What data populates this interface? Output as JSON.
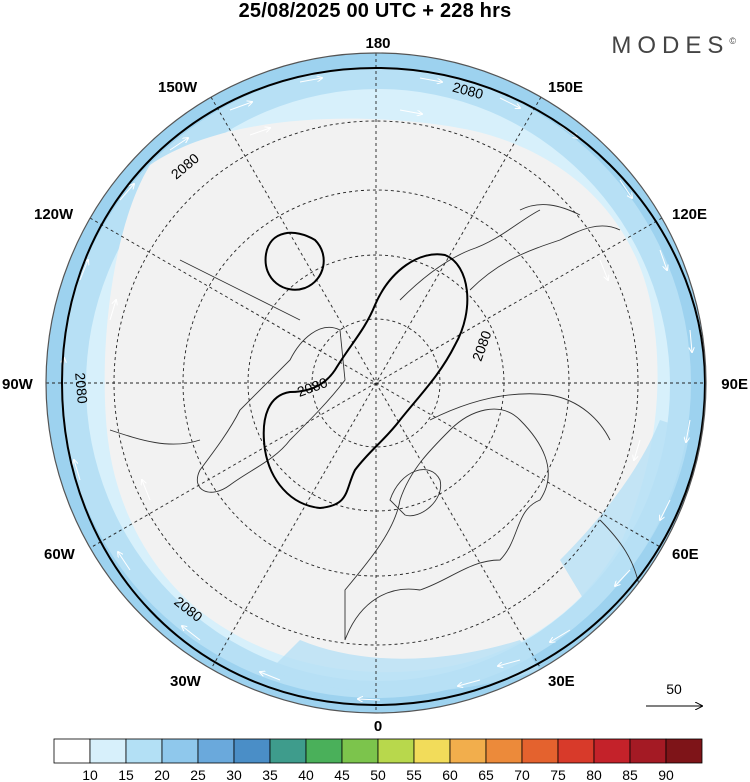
{
  "title": "25/08/2025  00 UTC  + 228 hrs",
  "logo": {
    "text": "MODES",
    "mark": "©"
  },
  "map": {
    "longitude_labels": {
      "top": "180",
      "bottom": "0",
      "left": "90W",
      "right": "90E",
      "top_left": "150W",
      "top_right": "150E",
      "upper_left": "120W",
      "upper_right": "120E",
      "lower_left": "60W",
      "lower_right": "60E",
      "bottom_left": "30W",
      "bottom_right": "30E"
    },
    "contour_labels": [
      "2080",
      "2080",
      "2080",
      "2080",
      "2080",
      "2080"
    ]
  },
  "reference_vector": {
    "value": "50"
  },
  "colorbar": {
    "ticks": [
      "10",
      "15",
      "20",
      "25",
      "30",
      "35",
      "40",
      "45",
      "50",
      "55",
      "60",
      "65",
      "70",
      "75",
      "80",
      "85",
      "90"
    ],
    "colors": [
      "#ffffff",
      "#d7f0fb",
      "#b3e0f5",
      "#8fc8ec",
      "#6aa9dc",
      "#4a8ec7",
      "#3e9c8c",
      "#4ab05a",
      "#7cc44c",
      "#b8d84c",
      "#f2dc5a",
      "#f2ae4c",
      "#ec8a3a",
      "#e4622e",
      "#d83a2a",
      "#c4222a",
      "#a41a24",
      "#7e1418"
    ]
  }
}
